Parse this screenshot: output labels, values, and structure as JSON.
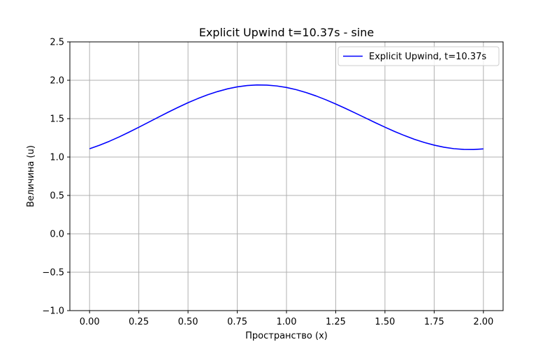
{
  "chart_data": {
    "type": "line",
    "title": "Explicit Upwind t=10.37s - sine",
    "xlabel": "Пространство (x)",
    "ylabel": "Величина (u)",
    "xlim": [
      -0.1,
      2.1
    ],
    "ylim": [
      -1.0,
      2.5
    ],
    "xticks": [
      0.0,
      0.25,
      0.5,
      0.75,
      1.0,
      1.25,
      1.5,
      1.75,
      2.0
    ],
    "xtick_labels": [
      "0.00",
      "0.25",
      "0.50",
      "0.75",
      "1.00",
      "1.25",
      "1.50",
      "1.75",
      "2.00"
    ],
    "yticks": [
      -1.0,
      -0.5,
      0.0,
      0.5,
      1.0,
      1.5,
      2.0,
      2.5
    ],
    "ytick_labels": [
      "−1.0",
      "−0.5",
      "0.0",
      "0.5",
      "1.0",
      "1.5",
      "2.0",
      "2.5"
    ],
    "grid": true,
    "legend_position": "upper right",
    "series": [
      {
        "name": "Explicit Upwind, t=10.37s",
        "color": "#0000ff",
        "x": [
          0.0,
          0.05,
          0.1,
          0.15,
          0.2,
          0.25,
          0.3,
          0.35,
          0.4,
          0.45,
          0.5,
          0.55,
          0.6,
          0.65,
          0.7,
          0.75,
          0.8,
          0.85,
          0.9,
          0.95,
          1.0,
          1.05,
          1.1,
          1.15,
          1.2,
          1.25,
          1.3,
          1.35,
          1.4,
          1.45,
          1.5,
          1.55,
          1.6,
          1.65,
          1.7,
          1.75,
          1.8,
          1.85,
          1.9,
          1.95,
          2.0
        ],
        "y": [
          1.108,
          1.153,
          1.205,
          1.262,
          1.324,
          1.388,
          1.454,
          1.52,
          1.585,
          1.648,
          1.708,
          1.762,
          1.811,
          1.853,
          1.888,
          1.914,
          1.931,
          1.939,
          1.937,
          1.926,
          1.906,
          1.877,
          1.84,
          1.796,
          1.746,
          1.691,
          1.633,
          1.572,
          1.511,
          1.449,
          1.389,
          1.332,
          1.279,
          1.231,
          1.19,
          1.155,
          1.128,
          1.109,
          1.099,
          1.098,
          1.106
        ]
      }
    ]
  }
}
